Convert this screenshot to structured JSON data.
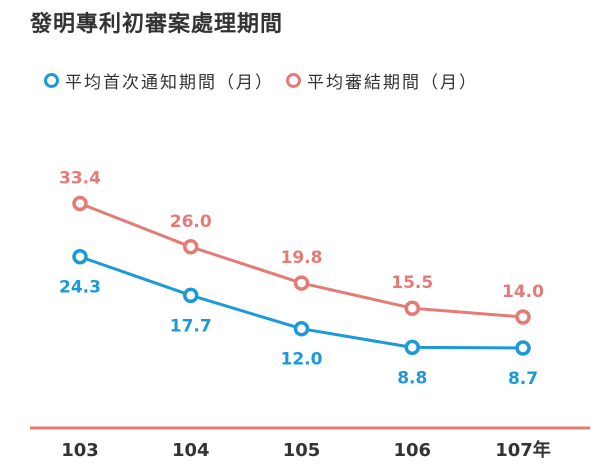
{
  "title": "發明專利初審案處理期間",
  "colors": {
    "blue": "#1b9ad9",
    "red": "#e57b76",
    "axis": "#e57b76",
    "text": "#333333"
  },
  "chart_data": {
    "type": "line",
    "title": "發明專利初審案處理期間",
    "categories": [
      "103",
      "104",
      "105",
      "106",
      "107"
    ],
    "x_unit": "年",
    "series": [
      {
        "name": "平均首次通知期間（月）",
        "color": "#1b9ad9",
        "values": [
          24.3,
          17.7,
          12.0,
          8.8,
          8.7
        ],
        "labels": [
          "24.3",
          "17.7",
          "12.0",
          "8.8",
          "8.7"
        ],
        "label_position": "below"
      },
      {
        "name": "平均審結期間（月）",
        "color": "#e57b76",
        "values": [
          33.4,
          26.0,
          19.8,
          15.5,
          14.0
        ],
        "labels": [
          "33.4",
          "26.0",
          "19.8",
          "15.5",
          "14.0"
        ],
        "label_position": "above"
      }
    ],
    "legend": "top-left",
    "grid": false
  }
}
